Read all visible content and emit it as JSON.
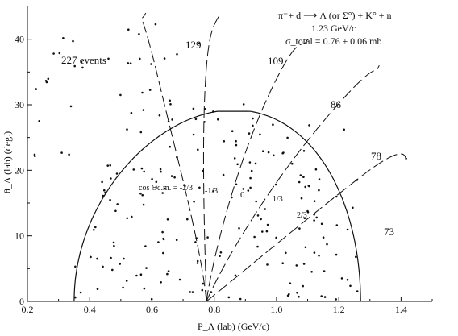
{
  "chart_data": {
    "type": "scatter",
    "title": "",
    "xlabel": "P_Λ (lab) (GeV/c)",
    "ylabel": "θ_Λ (lab) (deg.)",
    "xlim": [
      0.2,
      1.5
    ],
    "ylim": [
      0,
      45
    ],
    "xticks": [
      "0.2",
      "0.4",
      "0.6",
      "0.8",
      "1.0",
      "1.2",
      "1.4"
    ],
    "yticks": [
      "0",
      "10",
      "20",
      "30",
      "40"
    ],
    "grid": false,
    "annotations": {
      "reaction": "π⁻+ d ⟶ Λ (or Σ°) + K° + n",
      "momentum": "1.23 GeV/c",
      "cross_section": "σ_total = 0.76 ± 0.06 mb",
      "events": "227 events",
      "cos_label": "cos Θc.m. = -2/3",
      "cos_values": [
        "-1/3",
        "0",
        "1/3",
        "2/3"
      ],
      "bin_counts": [
        "129",
        "109",
        "86",
        "78",
        "73"
      ]
    },
    "kinematic_boundary": {
      "p_min": 0.35,
      "p_max": 1.27,
      "theta_max": 29
    },
    "point_count": 227,
    "colors": {
      "ink": "#111111",
      "background": "#ffffff"
    }
  }
}
